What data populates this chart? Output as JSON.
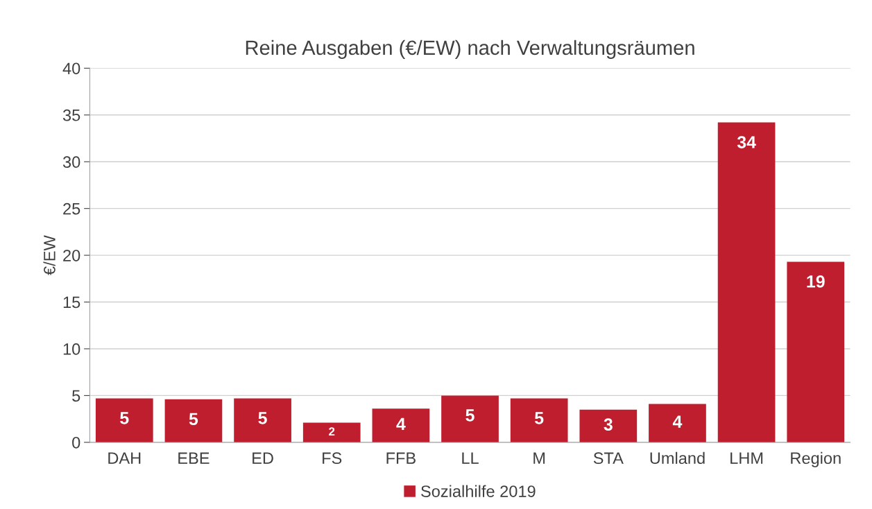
{
  "chart_data": {
    "type": "bar",
    "title": "Reine Ausgaben (€/EW) nach Verwaltungsräumen",
    "ylabel": "€/EW",
    "categories": [
      "DAH",
      "EBE",
      "ED",
      "FS",
      "FFB",
      "LL",
      "M",
      "STA",
      "Umland",
      "LHM",
      "Region"
    ],
    "series": [
      {
        "name": "Sozialhilfe 2019",
        "color": "#be1e2d",
        "values": [
          4.7,
          4.6,
          4.7,
          2.1,
          3.6,
          5.0,
          4.7,
          3.5,
          4.1,
          34.2,
          19.3
        ],
        "value_labels": [
          "5",
          "5",
          "5",
          "2",
          "4",
          "5",
          "5",
          "3",
          "4",
          "34",
          "19"
        ]
      }
    ],
    "ylim": [
      0,
      40
    ],
    "yticks": [
      0,
      5,
      10,
      15,
      20,
      25,
      30,
      35,
      40
    ],
    "grid": "y",
    "legend": "bottom"
  }
}
